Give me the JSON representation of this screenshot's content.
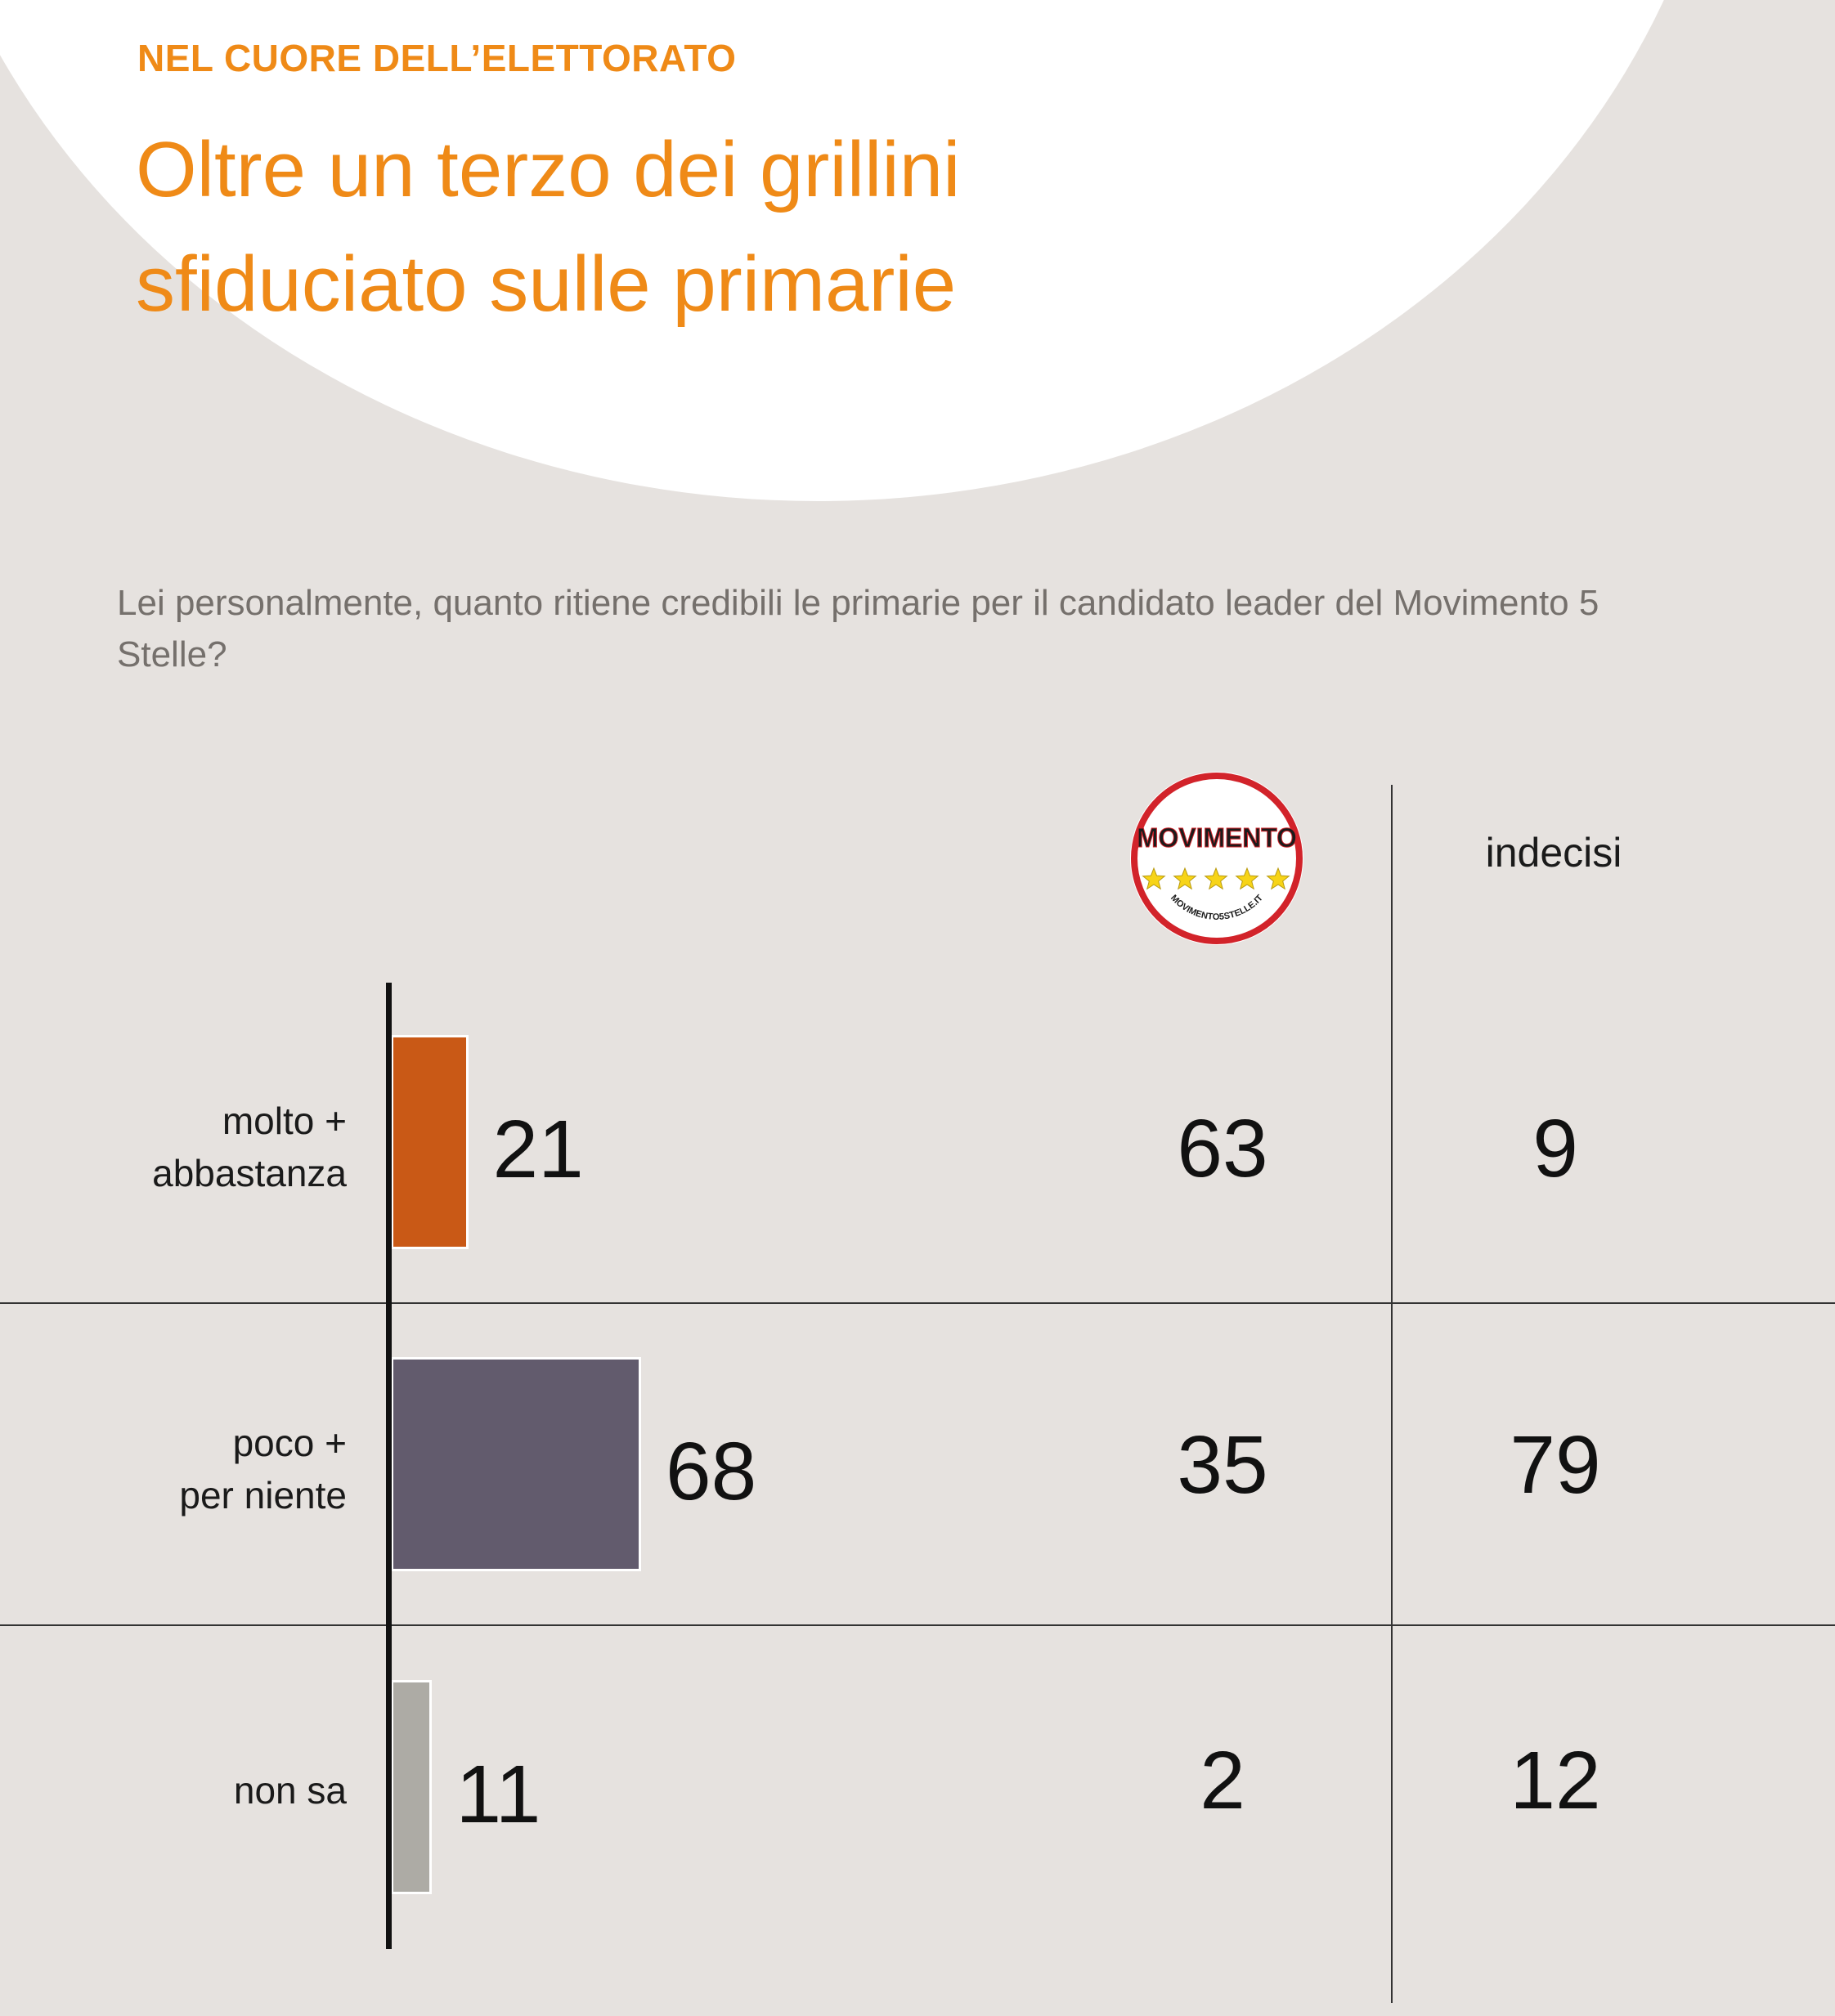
{
  "header": {
    "kicker": "NEL CUORE DELL’ELETTORATO",
    "title_line1": "Oltre un terzo dei grillini",
    "title_line2": "sfiduciato sulle primarie"
  },
  "question": "Lei personalmente, quanto ritiene credibili le primarie per il candidato leader del Movimento 5 Stelle?",
  "logo": {
    "icon": "movimento-5-stelle-logo-icon",
    "text_main": "MOVIMENTO",
    "text_ring": "MOVIMENTO5STELLE.IT",
    "color": "#d2232a",
    "star_color": "#f7d417"
  },
  "chart_data": {
    "type": "bar",
    "orientation": "horizontal",
    "categories": [
      {
        "line1": "molto +",
        "line2": "abbastanza"
      },
      {
        "line1": "poco +",
        "line2": "per niente"
      },
      {
        "line1": "non sa",
        "line2": ""
      }
    ],
    "series": [
      {
        "values": [
          21,
          68,
          11
        ],
        "colors": [
          "#c95916",
          "#625b6d",
          "#adaba5"
        ]
      }
    ],
    "columns": [
      {
        "header": "",
        "header_icon": "movimento-5-stelle-logo-icon",
        "values": [
          63,
          35,
          2
        ]
      },
      {
        "header": "indecisi",
        "values": [
          9,
          79,
          12
        ]
      }
    ],
    "xlim": [
      0,
      100
    ]
  }
}
